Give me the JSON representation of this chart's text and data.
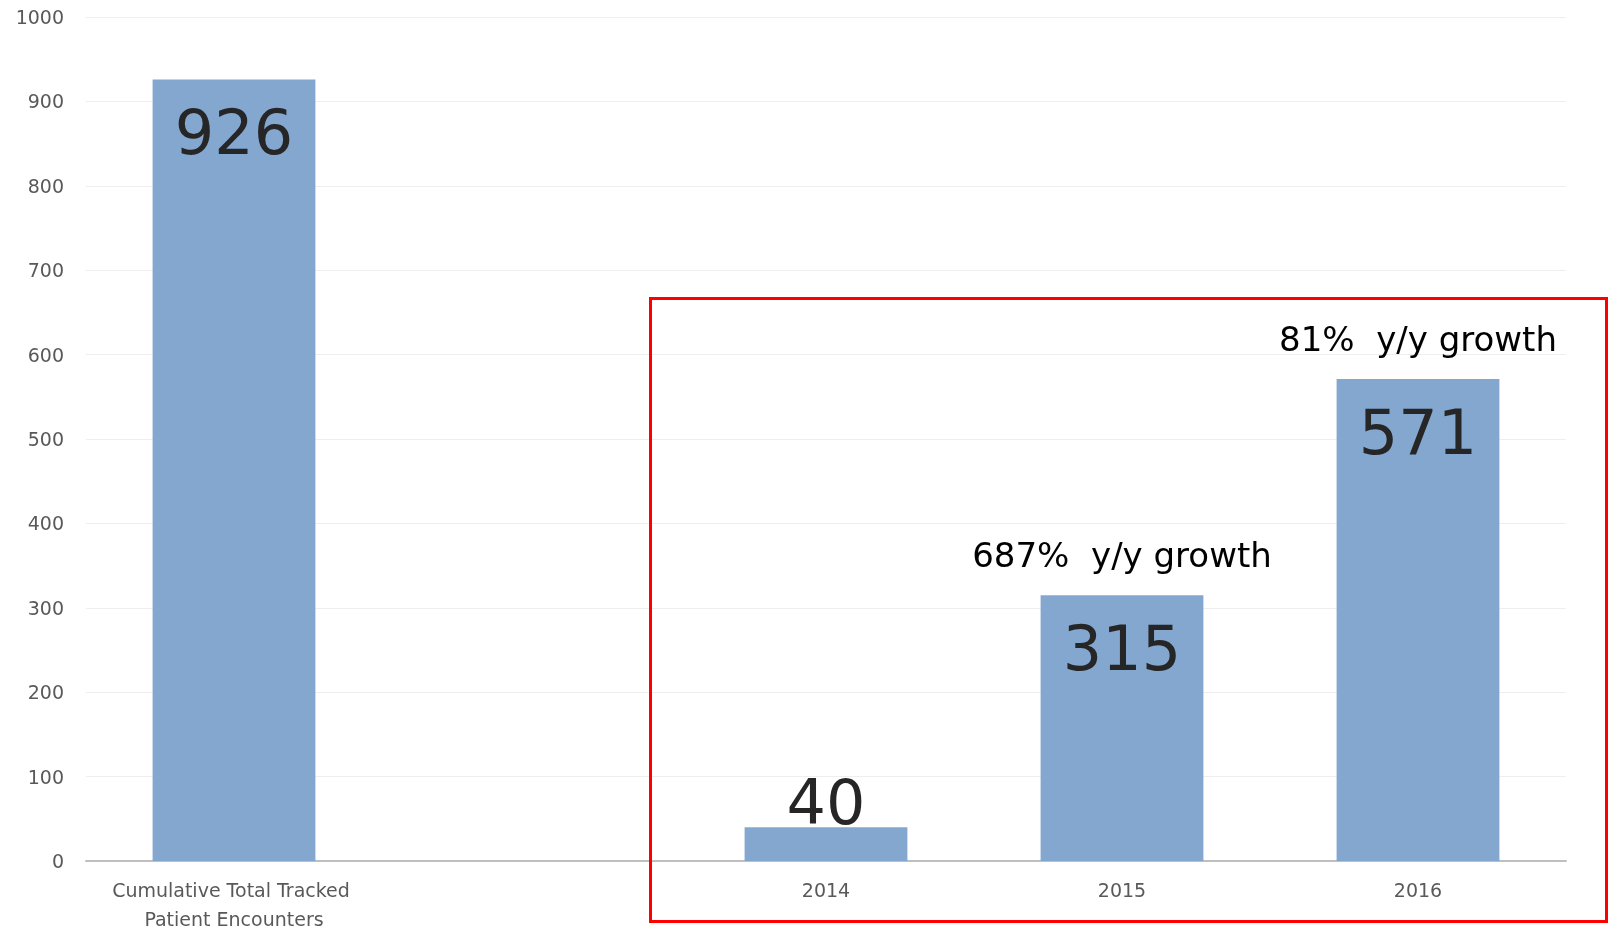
{
  "chart_data": {
    "type": "bar",
    "categories": [
      "Cumulative Total Tracked Patient Encounters",
      null,
      "2014",
      "2015",
      "2016"
    ],
    "values": [
      926,
      null,
      40,
      315,
      571
    ],
    "color": "#84a7d0",
    "ylim": [
      0,
      1000
    ],
    "yticks": [
      0,
      100,
      200,
      300,
      400,
      500,
      600,
      700,
      800,
      900,
      1000
    ],
    "grid": "y",
    "data_labels": true,
    "annotations": [
      {
        "text": "687%  y/y growth",
        "x": "2015",
        "y": 315
      },
      {
        "text": "81%  y/y growth",
        "x": "2016",
        "y": 571
      }
    ]
  }
}
